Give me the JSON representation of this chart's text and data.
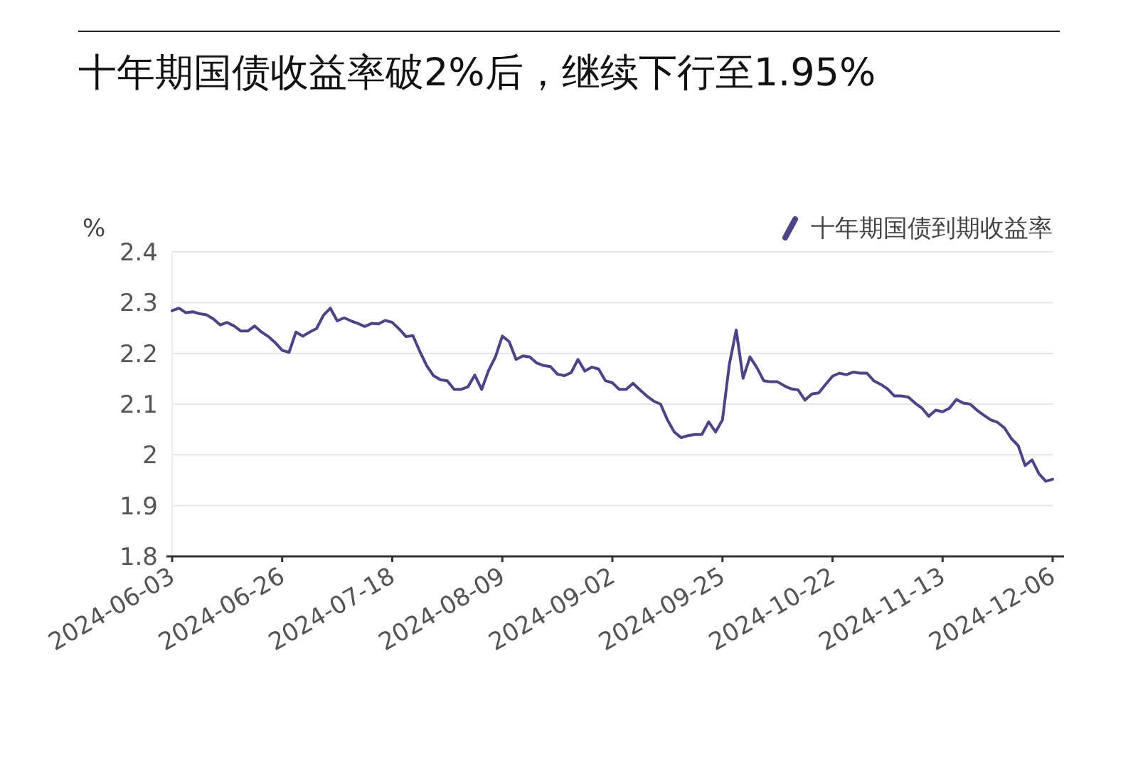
{
  "chart_data": {
    "type": "line",
    "title": "十年期国债收益率破2%后，继续下行至1.95%",
    "ylabel": "%",
    "categories": [
      "2024-06-03",
      null,
      null,
      null,
      null,
      null,
      null,
      null,
      null,
      null,
      null,
      null,
      null,
      null,
      null,
      null,
      "2024-06-26",
      null,
      null,
      null,
      null,
      null,
      null,
      null,
      null,
      null,
      null,
      null,
      null,
      null,
      null,
      null,
      "2024-07-18",
      null,
      null,
      null,
      null,
      null,
      null,
      null,
      null,
      null,
      null,
      null,
      null,
      null,
      null,
      null,
      "2024-08-09",
      null,
      null,
      null,
      null,
      null,
      null,
      null,
      null,
      null,
      null,
      null,
      null,
      null,
      null,
      null,
      "2024-09-02",
      null,
      null,
      null,
      null,
      null,
      null,
      null,
      null,
      null,
      null,
      null,
      null,
      null,
      null,
      null,
      "2024-09-25",
      null,
      null,
      null,
      null,
      null,
      null,
      null,
      null,
      null,
      null,
      null,
      null,
      null,
      null,
      null,
      "2024-10-22",
      null,
      null,
      null,
      null,
      null,
      null,
      null,
      null,
      null,
      null,
      null,
      null,
      null,
      null,
      null,
      "2024-11-13",
      null,
      null,
      null,
      null,
      null,
      null,
      null,
      null,
      null,
      null,
      null,
      null,
      null,
      null,
      null,
      "2024-12-06"
    ],
    "series": [
      {
        "name": "十年期国债到期收益率",
        "color": "#4b4585",
        "values": [
          2.284,
          2.289,
          2.28,
          2.282,
          2.278,
          2.276,
          2.268,
          2.256,
          2.261,
          2.254,
          2.244,
          2.244,
          2.254,
          2.242,
          2.233,
          2.221,
          2.206,
          2.202,
          2.242,
          2.234,
          2.242,
          2.249,
          2.275,
          2.289,
          2.264,
          2.27,
          2.264,
          2.259,
          2.253,
          2.259,
          2.258,
          2.265,
          2.261,
          2.248,
          2.233,
          2.235,
          2.204,
          2.176,
          2.156,
          2.148,
          2.146,
          2.129,
          2.129,
          2.134,
          2.157,
          2.129,
          2.166,
          2.193,
          2.234,
          2.223,
          2.188,
          2.195,
          2.193,
          2.181,
          2.176,
          2.174,
          2.159,
          2.156,
          2.162,
          2.188,
          2.165,
          2.173,
          2.169,
          2.146,
          2.142,
          2.129,
          2.129,
          2.141,
          2.128,
          2.116,
          2.106,
          2.1,
          2.069,
          2.045,
          2.034,
          2.038,
          2.04,
          2.04,
          2.065,
          2.045,
          2.069,
          2.178,
          2.246,
          2.151,
          2.193,
          2.172,
          2.146,
          2.144,
          2.144,
          2.136,
          2.13,
          2.128,
          2.108,
          2.12,
          2.122,
          2.139,
          2.155,
          2.161,
          2.158,
          2.163,
          2.161,
          2.161,
          2.146,
          2.139,
          2.13,
          2.116,
          2.116,
          2.114,
          2.102,
          2.092,
          2.076,
          2.088,
          2.085,
          2.092,
          2.109,
          2.102,
          2.1,
          2.088,
          2.078,
          2.069,
          2.064,
          2.053,
          2.032,
          2.018,
          1.979,
          1.99,
          1.963,
          1.948,
          1.952
        ]
      }
    ],
    "ylim": [
      1.8,
      2.4
    ],
    "yticks": [
      1.8,
      1.9,
      2,
      2.1,
      2.2,
      2.3,
      2.4
    ],
    "grid": "y",
    "legend": "top right",
    "marker": "none",
    "line_style": "solid"
  }
}
